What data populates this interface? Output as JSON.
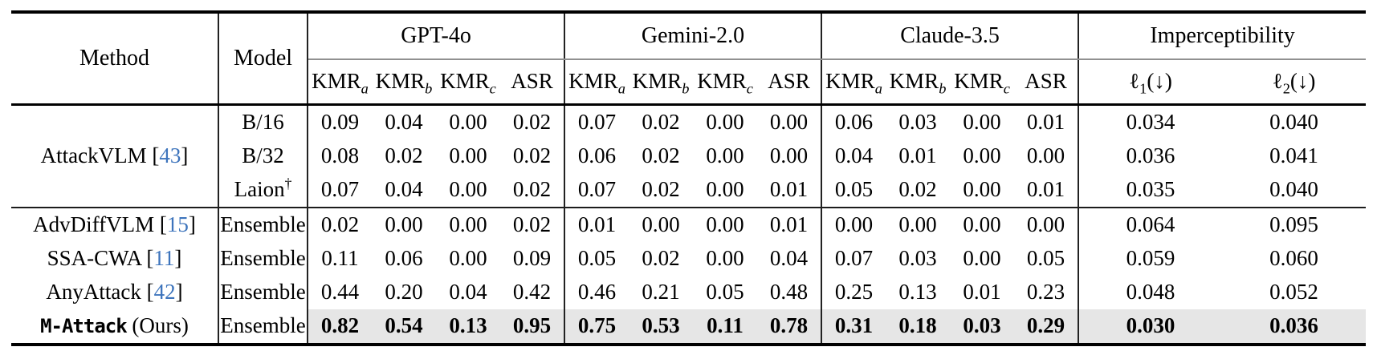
{
  "table": {
    "header": {
      "method": "Method",
      "model": "Model",
      "groups": [
        {
          "label": "GPT-4o"
        },
        {
          "label": "Gemini-2.0"
        },
        {
          "label": "Claude-3.5"
        },
        {
          "label": "Imperceptibility"
        }
      ],
      "metrics": [
        {
          "base": "KMR",
          "sub": "a"
        },
        {
          "base": "KMR",
          "sub": "b"
        },
        {
          "base": "KMR",
          "sub": "c"
        },
        {
          "base": "ASR",
          "sub": ""
        }
      ],
      "imperceptibility_metrics": [
        {
          "base": "ℓ",
          "sub": "1",
          "suffix": "(↓)"
        },
        {
          "base": "ℓ",
          "sub": "2",
          "suffix": "(↓)"
        }
      ]
    },
    "rows": [
      {
        "method": {
          "name": "AttackVLM",
          "cite": "43",
          "rowspan": 3
        },
        "model": {
          "label": "B/16",
          "sup": ""
        },
        "values": [
          "0.09",
          "0.04",
          "0.00",
          "0.02",
          "0.07",
          "0.02",
          "0.00",
          "0.00",
          "0.06",
          "0.03",
          "0.00",
          "0.01",
          "0.034",
          "0.040"
        ]
      },
      {
        "model": {
          "label": "B/32",
          "sup": ""
        },
        "values": [
          "0.08",
          "0.02",
          "0.00",
          "0.02",
          "0.06",
          "0.02",
          "0.00",
          "0.00",
          "0.04",
          "0.01",
          "0.00",
          "0.00",
          "0.036",
          "0.041"
        ]
      },
      {
        "model": {
          "label": "Laion",
          "sup": "†"
        },
        "values": [
          "0.07",
          "0.04",
          "0.00",
          "0.02",
          "0.07",
          "0.02",
          "0.00",
          "0.01",
          "0.05",
          "0.02",
          "0.00",
          "0.01",
          "0.035",
          "0.040"
        ]
      },
      {
        "separator": true,
        "method": {
          "name": "AdvDiffVLM",
          "cite": "15"
        },
        "model": {
          "label": "Ensemble",
          "sup": ""
        },
        "values": [
          "0.02",
          "0.00",
          "0.00",
          "0.02",
          "0.01",
          "0.00",
          "0.00",
          "0.01",
          "0.00",
          "0.00",
          "0.00",
          "0.00",
          "0.064",
          "0.095"
        ]
      },
      {
        "method": {
          "name": "SSA-CWA",
          "cite": "11"
        },
        "model": {
          "label": "Ensemble",
          "sup": ""
        },
        "values": [
          "0.11",
          "0.06",
          "0.00",
          "0.09",
          "0.05",
          "0.02",
          "0.00",
          "0.04",
          "0.07",
          "0.03",
          "0.00",
          "0.05",
          "0.059",
          "0.060"
        ]
      },
      {
        "method": {
          "name": "AnyAttack",
          "cite": "42"
        },
        "model": {
          "label": "Ensemble",
          "sup": ""
        },
        "values": [
          "0.44",
          "0.20",
          "0.04",
          "0.42",
          "0.46",
          "0.21",
          "0.05",
          "0.48",
          "0.25",
          "0.13",
          "0.01",
          "0.23",
          "0.048",
          "0.052"
        ]
      },
      {
        "highlight": true,
        "method": {
          "name": "M-Attack",
          "mono": true,
          "suffix": "(Ours)"
        },
        "model": {
          "label": "Ensemble",
          "sup": ""
        },
        "values": [
          "0.82",
          "0.54",
          "0.13",
          "0.95",
          "0.75",
          "0.53",
          "0.11",
          "0.78",
          "0.31",
          "0.18",
          "0.03",
          "0.29",
          "0.030",
          "0.036"
        ]
      }
    ]
  },
  "colors": {
    "citation_blue": "#3d74bc",
    "highlight_gray": "#e6e6e6",
    "group_rule_gray": "#909090"
  }
}
